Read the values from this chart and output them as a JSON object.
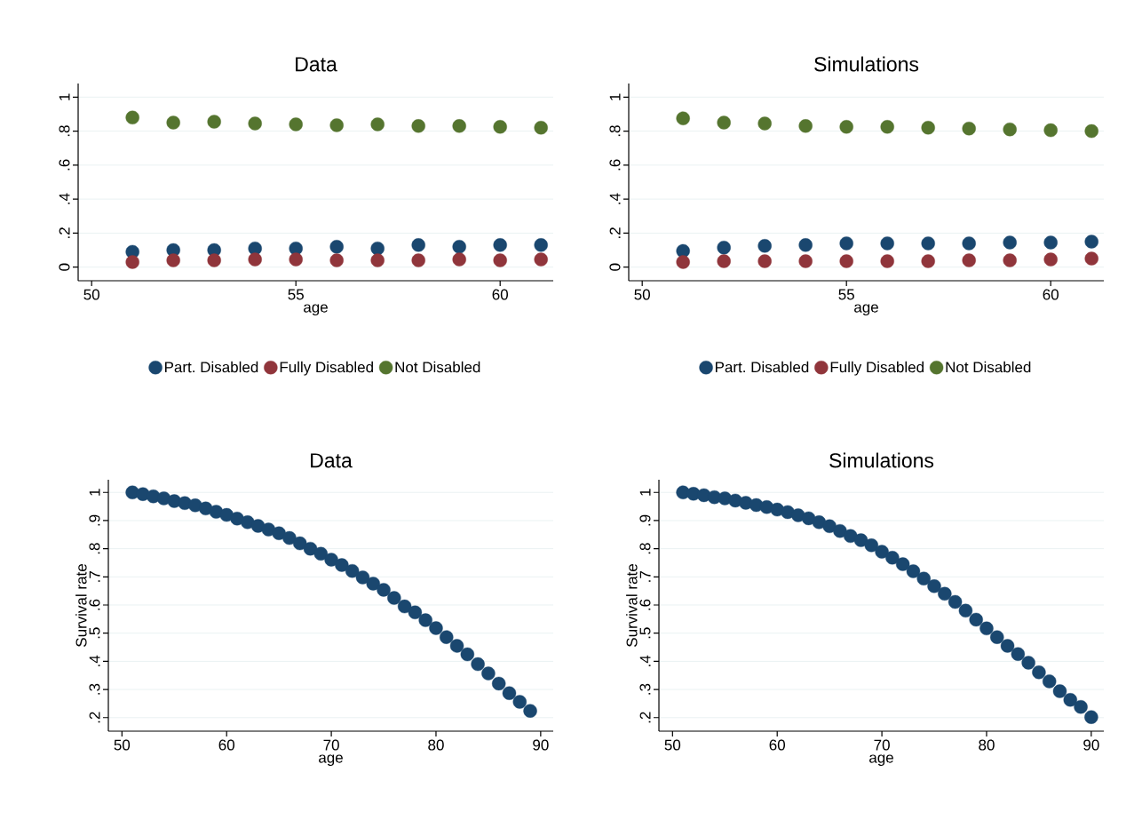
{
  "chart_data": [
    {
      "type": "scatter",
      "title": "Data",
      "xlabel": "age",
      "x": [
        51,
        52,
        53,
        54,
        55,
        56,
        57,
        58,
        59,
        60,
        61
      ],
      "series": [
        {
          "name": "Part. Disabled",
          "color": "#1a476f",
          "values": [
            0.09,
            0.1,
            0.1,
            0.11,
            0.11,
            0.12,
            0.11,
            0.13,
            0.12,
            0.13,
            0.13
          ]
        },
        {
          "name": "Fully Disabled",
          "color": "#90353b",
          "values": [
            0.03,
            0.04,
            0.04,
            0.045,
            0.045,
            0.04,
            0.04,
            0.04,
            0.045,
            0.04,
            0.045
          ]
        },
        {
          "name": "Not Disabled",
          "color": "#55752f",
          "values": [
            0.88,
            0.85,
            0.855,
            0.845,
            0.84,
            0.835,
            0.84,
            0.83,
            0.83,
            0.825,
            0.82
          ]
        }
      ],
      "xlim": [
        49.67,
        61.3
      ],
      "xticks": [
        50,
        55,
        60
      ],
      "ylim": [
        -0.08,
        1.08
      ],
      "yticks": [
        0,
        {
          "value": 0.2,
          "label": ".2"
        },
        {
          "value": 0.4,
          "label": ".4"
        },
        {
          "value": 0.6,
          "label": ".6"
        },
        {
          "value": 0.8,
          "label": ".8"
        },
        1
      ],
      "grid": "y",
      "legend": "bottom",
      "marker": "circle"
    },
    {
      "type": "scatter",
      "title": "Simulations",
      "xlabel": "age",
      "x": [
        51,
        52,
        53,
        54,
        55,
        56,
        57,
        58,
        59,
        60,
        61
      ],
      "series": [
        {
          "name": "Part. Disabled",
          "color": "#1a476f",
          "values": [
            0.095,
            0.115,
            0.125,
            0.13,
            0.14,
            0.14,
            0.14,
            0.14,
            0.145,
            0.145,
            0.15
          ]
        },
        {
          "name": "Fully Disabled",
          "color": "#90353b",
          "values": [
            0.03,
            0.035,
            0.035,
            0.035,
            0.035,
            0.035,
            0.035,
            0.04,
            0.04,
            0.045,
            0.05
          ]
        },
        {
          "name": "Not Disabled",
          "color": "#55752f",
          "values": [
            0.875,
            0.85,
            0.845,
            0.83,
            0.825,
            0.825,
            0.82,
            0.815,
            0.81,
            0.805,
            0.8
          ]
        }
      ],
      "xlim": [
        49.67,
        61.3
      ],
      "xticks": [
        50,
        55,
        60
      ],
      "ylim": [
        -0.08,
        1.08
      ],
      "yticks": [
        0,
        {
          "value": 0.2,
          "label": ".2"
        },
        {
          "value": 0.4,
          "label": ".4"
        },
        {
          "value": 0.6,
          "label": ".6"
        },
        {
          "value": 0.8,
          "label": ".8"
        },
        1
      ],
      "grid": "y",
      "legend": "bottom",
      "marker": "circle"
    },
    {
      "type": "scatter",
      "title": "Data",
      "xlabel": "age",
      "ylabel": "Survival rate",
      "x": [
        51,
        52,
        53,
        54,
        55,
        56,
        57,
        58,
        59,
        60,
        61,
        62,
        63,
        64,
        65,
        66,
        67,
        68,
        69,
        70,
        71,
        72,
        73,
        74,
        75,
        76,
        77,
        78,
        79,
        80,
        81,
        82,
        83,
        84,
        85,
        86,
        87,
        88,
        89
      ],
      "series": [
        {
          "color": "#1a476f",
          "values": [
            1.0,
            0.994,
            0.986,
            0.979,
            0.969,
            0.962,
            0.954,
            0.943,
            0.931,
            0.92,
            0.907,
            0.894,
            0.881,
            0.868,
            0.855,
            0.838,
            0.819,
            0.8,
            0.782,
            0.761,
            0.742,
            0.721,
            0.698,
            0.676,
            0.654,
            0.625,
            0.595,
            0.574,
            0.546,
            0.518,
            0.486,
            0.455,
            0.425,
            0.39,
            0.357,
            0.321,
            0.287,
            0.256,
            0.224
          ]
        }
      ],
      "xlim": [
        48.7,
        91.2
      ],
      "xticks": [
        50,
        60,
        70,
        80,
        90
      ],
      "ylim": [
        0.152,
        1.045
      ],
      "yticks": [
        {
          "value": 0.2,
          "label": ".2"
        },
        {
          "value": 0.3,
          "label": ".3"
        },
        {
          "value": 0.4,
          "label": ".4"
        },
        {
          "value": 0.5,
          "label": ".5"
        },
        {
          "value": 0.6,
          "label": ".6"
        },
        {
          "value": 0.7,
          "label": ".7"
        },
        {
          "value": 0.8,
          "label": ".8"
        },
        {
          "value": 0.9,
          "label": ".9"
        },
        1
      ],
      "grid": "y",
      "marker": "circle"
    },
    {
      "type": "scatter",
      "title": "Simulations",
      "xlabel": "age",
      "ylabel": "Survival rate",
      "x": [
        51,
        52,
        53,
        54,
        55,
        56,
        57,
        58,
        59,
        60,
        61,
        62,
        63,
        64,
        65,
        66,
        67,
        68,
        69,
        70,
        71,
        72,
        73,
        74,
        75,
        76,
        77,
        78,
        79,
        80,
        81,
        82,
        83,
        84,
        85,
        86,
        87,
        88,
        89,
        90
      ],
      "series": [
        {
          "color": "#1a476f",
          "values": [
            1.0,
            0.995,
            0.99,
            0.983,
            0.979,
            0.971,
            0.963,
            0.955,
            0.948,
            0.939,
            0.93,
            0.919,
            0.908,
            0.894,
            0.88,
            0.863,
            0.845,
            0.83,
            0.812,
            0.789,
            0.768,
            0.745,
            0.72,
            0.694,
            0.667,
            0.64,
            0.611,
            0.58,
            0.548,
            0.517,
            0.486,
            0.455,
            0.426,
            0.395,
            0.361,
            0.329,
            0.294,
            0.263,
            0.238,
            0.202
          ]
        }
      ],
      "xlim": [
        48.7,
        91.2
      ],
      "xticks": [
        50,
        60,
        70,
        80,
        90
      ],
      "ylim": [
        0.152,
        1.045
      ],
      "yticks": [
        {
          "value": 0.2,
          "label": ".2"
        },
        {
          "value": 0.3,
          "label": ".3"
        },
        {
          "value": 0.4,
          "label": ".4"
        },
        {
          "value": 0.5,
          "label": ".5"
        },
        {
          "value": 0.6,
          "label": ".6"
        },
        {
          "value": 0.7,
          "label": ".7"
        },
        {
          "value": 0.8,
          "label": ".8"
        },
        {
          "value": 0.9,
          "label": ".9"
        },
        1
      ],
      "grid": "y",
      "marker": "circle"
    }
  ]
}
